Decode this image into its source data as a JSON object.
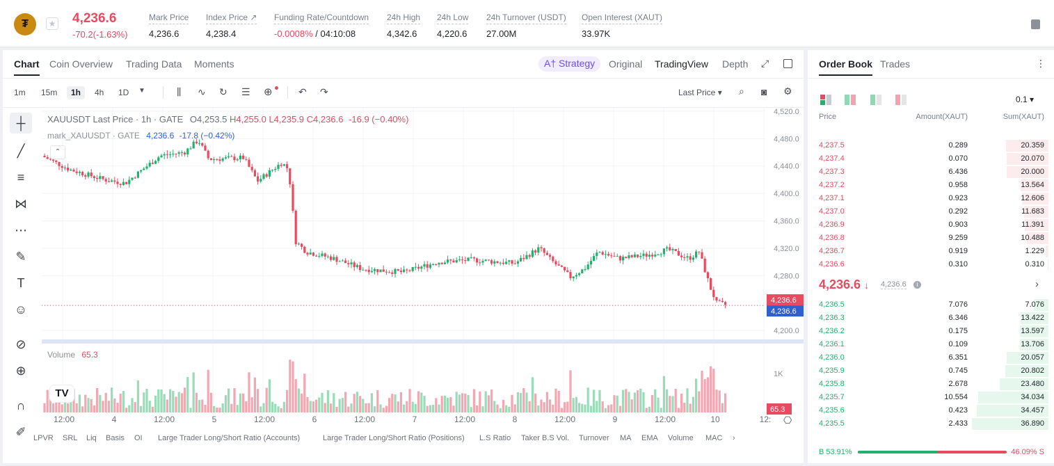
{
  "header": {
    "logo_glyph": "₮",
    "star_icon": "★",
    "last_price": "4,236.6",
    "change": "-70.2(-1.63%)",
    "stats": [
      {
        "label": "Mark Price",
        "value": "4,236.6"
      },
      {
        "label": "Index Price ↗",
        "value": "4,238.4"
      },
      {
        "label": "Funding Rate/Countdown",
        "value_neg": "-0.0008%",
        "value": " / 04:10:08"
      },
      {
        "label": "24h High",
        "value": "4,342.6"
      },
      {
        "label": "24h Low",
        "value": "4,220.6"
      },
      {
        "label": "24h Turnover (USDT)",
        "value": "27.00M"
      },
      {
        "label": "Open Interest (XAUT)",
        "value": "33.97K"
      }
    ]
  },
  "chart_tabs": [
    "Chart",
    "Coin Overview",
    "Trading Data",
    "Moments"
  ],
  "view_tabs": {
    "strategy": "A† Strategy",
    "original": "Original",
    "tradingview": "TradingView",
    "depth": "Depth"
  },
  "timeframes": [
    "1m",
    "15m",
    "1h",
    "4h",
    "1D"
  ],
  "toolbar": {
    "price_type": "Last Price ▾"
  },
  "legend": {
    "title": "XAUUSDT Last Price · 1h · GATE",
    "o": "O4,253.5",
    "h": "H4,255.0",
    "l": "L4,235.9",
    "c": "C4,236.6",
    "chg": "-16.9 (−0.40%)",
    "mark": "mark_XAUUSDT · GATE",
    "mark_val": "4,236.6",
    "mark_chg": "-17.8 (−0.42%)",
    "volume_label": "Volume",
    "volume_val": "65.3"
  },
  "price_axis": [
    "4,520.0",
    "4,480.0",
    "4,440.0",
    "4,400.0",
    "4,360.0",
    "4,320.0",
    "4,280.0",
    "4,200.0"
  ],
  "price_tags": {
    "last": "4,236.6",
    "mark": "4,236.6",
    "vol": "65.3"
  },
  "vol_axis": "1K",
  "time_axis": [
    "12:00",
    "4",
    "12:00",
    "5",
    "12:00",
    "6",
    "12:00",
    "7",
    "12:00",
    "8",
    "12:00",
    "9",
    "12:00",
    "10",
    "12:"
  ],
  "indicators": [
    "LPVR",
    "SRL",
    "Liq",
    "Basis",
    "OI",
    "Large Trader Long/Short Ratio (Accounts)",
    "Large Trader Long/Short Ratio (Positions)",
    "L.S Ratio",
    "Taker B.S Vol.",
    "Turnover",
    "MA",
    "EMA",
    "Volume",
    "MACD"
  ],
  "order_book": {
    "tabs": [
      "Order Book",
      "Trades"
    ],
    "precision": "0.1 ▾",
    "headers": [
      "Price",
      "Amount(XAUT)",
      "Sum(XAUT)"
    ],
    "asks": [
      [
        "4,237.5",
        "0.289",
        "20.359"
      ],
      [
        "4,237.4",
        "0.070",
        "20.070"
      ],
      [
        "4,237.3",
        "6.436",
        "20.000"
      ],
      [
        "4,237.2",
        "0.958",
        "13.564"
      ],
      [
        "4,237.1",
        "0.923",
        "12.606"
      ],
      [
        "4,237.0",
        "0.292",
        "11.683"
      ],
      [
        "4,236.9",
        "0.903",
        "11.391"
      ],
      [
        "4,236.8",
        "9.259",
        "10.488"
      ],
      [
        "4,236.7",
        "0.919",
        "1.229"
      ],
      [
        "4,236.6",
        "0.310",
        "0.310"
      ]
    ],
    "mid_price": "4,236.6",
    "mid_arrow": "↓",
    "mid_mark": "4,236.6",
    "bids": [
      [
        "4,236.5",
        "7.076",
        "7.076"
      ],
      [
        "4,236.3",
        "6.346",
        "13.422"
      ],
      [
        "4,236.2",
        "0.175",
        "13.597"
      ],
      [
        "4,236.1",
        "0.109",
        "13.706"
      ],
      [
        "4,236.0",
        "6.351",
        "20.057"
      ],
      [
        "4,235.9",
        "0.745",
        "20.802"
      ],
      [
        "4,235.8",
        "2.678",
        "23.480"
      ],
      [
        "4,235.7",
        "10.554",
        "34.034"
      ],
      [
        "4,235.6",
        "0.423",
        "34.457"
      ],
      [
        "4,235.5",
        "2.433",
        "36.890"
      ]
    ],
    "buy_ratio": "B 53.91%",
    "sell_ratio": "46.09% S",
    "buy_fraction": 0.5391
  },
  "colors": {
    "up": "#20b26c",
    "down": "#e84a5f",
    "mark_blue": "#2f5fd0"
  }
}
